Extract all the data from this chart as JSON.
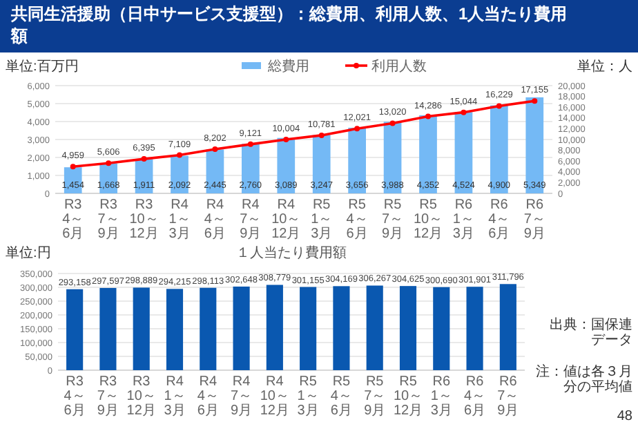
{
  "chart_data": [
    {
      "type": "bar",
      "title": "共同生活援助（日中サービス支援型）：総費用、利用人数、1人当たり費用額",
      "ylabel": "単位:百万円",
      "y2label": "単位：人",
      "categories": [
        "R3 4～6月",
        "R3 7～9月",
        "R3 10～12月",
        "R4 1～3月",
        "R4 4～6月",
        "R4 7～9月",
        "R4 10～12月",
        "R5 1～3月",
        "R5 4～6月",
        "R5 7～9月",
        "R5 10～12月",
        "R6 1～3月",
        "R6 4～6月",
        "R6 7～9月"
      ],
      "series": [
        {
          "name": "総費用",
          "type": "bar",
          "color": "#74b9f5",
          "values": [
            1454,
            1668,
            1911,
            2092,
            2445,
            2760,
            3089,
            3247,
            3656,
            3988,
            4352,
            4524,
            4900,
            5349
          ],
          "value_labels": [
            "1,454",
            "1,668",
            "1,911",
            "2,092",
            "2,445",
            "2,760",
            "3,089",
            "3,247",
            "3,656",
            "3,988",
            "4,352",
            "4,524",
            "4,900",
            "5,349"
          ]
        },
        {
          "name": "利用人数",
          "type": "line",
          "axis": "y2",
          "color": "#ff0000",
          "values": [
            4959,
            5606,
            6395,
            7109,
            8202,
            9121,
            10004,
            10781,
            12021,
            13020,
            14286,
            15044,
            16229,
            17155
          ],
          "value_labels": [
            "4,959",
            "5,606",
            "6,395",
            "7,109",
            "8,202",
            "9,121",
            "10,004",
            "10,781",
            "12,021",
            "13,020",
            "14,286",
            "15,044",
            "16,229",
            "17,155"
          ]
        }
      ],
      "ylim": [
        0,
        6000
      ],
      "yticks": [
        0,
        {
          "value": 1000,
          "label": "1,000"
        },
        {
          "value": 2000,
          "label": "2,000"
        },
        {
          "value": 3000,
          "label": "3,000"
        },
        {
          "value": 4000,
          "label": "4,000"
        },
        {
          "value": 5000,
          "label": "5,000"
        },
        {
          "value": 6000,
          "label": "6,000"
        }
      ],
      "y2lim": [
        0,
        20000
      ],
      "y2ticks": [
        0,
        {
          "value": 2000,
          "label": "2,000"
        },
        {
          "value": 4000,
          "label": "4,000"
        },
        {
          "value": 6000,
          "label": "6,000"
        },
        {
          "value": 8000,
          "label": "8,000"
        },
        {
          "value": 10000,
          "label": "10,000"
        },
        {
          "value": 12000,
          "label": "12,000"
        },
        {
          "value": 14000,
          "label": "14,000"
        },
        {
          "value": 16000,
          "label": "16,000"
        },
        {
          "value": 18000,
          "label": "18,000"
        },
        {
          "value": 20000,
          "label": "20,000"
        }
      ],
      "grid": "y",
      "legend": "top",
      "marker": "circle",
      "line_style": "solid"
    },
    {
      "type": "bar",
      "title": "１人当たり費用額",
      "ylabel": "単位:円",
      "categories": [
        "R3 4～6月",
        "R3 7～9月",
        "R3 10～12月",
        "R4 1～3月",
        "R4 4～6月",
        "R4 7～9月",
        "R4 10～12月",
        "R5 1～3月",
        "R5 4～6月",
        "R5 7～9月",
        "R5 10～12月",
        "R6 1～3月",
        "R6 4～6月",
        "R6 7～9月"
      ],
      "values": [
        293158,
        297597,
        298889,
        294215,
        298113,
        302648,
        308779,
        301155,
        304169,
        306267,
        304625,
        300690,
        301901,
        311796
      ],
      "color": "#0a58b0",
      "value_labels": [
        "293,158",
        "297,597",
        "298,889",
        "294,215",
        "298,113",
        "302,648",
        "308,779",
        "301,155",
        "304,169",
        "306,267",
        "304,625",
        "300,690",
        "301,901",
        "311,796"
      ],
      "ylim": [
        0,
        350000
      ],
      "yticks": [
        0,
        {
          "value": 50000,
          "label": "50,000"
        },
        {
          "value": 100000,
          "label": "100,000"
        },
        {
          "value": 150000,
          "label": "150,000"
        },
        {
          "value": 200000,
          "label": "200,000"
        },
        {
          "value": 250000,
          "label": "250,000"
        },
        {
          "value": 300000,
          "label": "300,000"
        },
        {
          "value": 350000,
          "label": "350,000"
        }
      ],
      "grid": "y",
      "annotations": [
        "出典：国保連データ",
        "注：値は各３月分の平均値",
        "48"
      ]
    }
  ]
}
